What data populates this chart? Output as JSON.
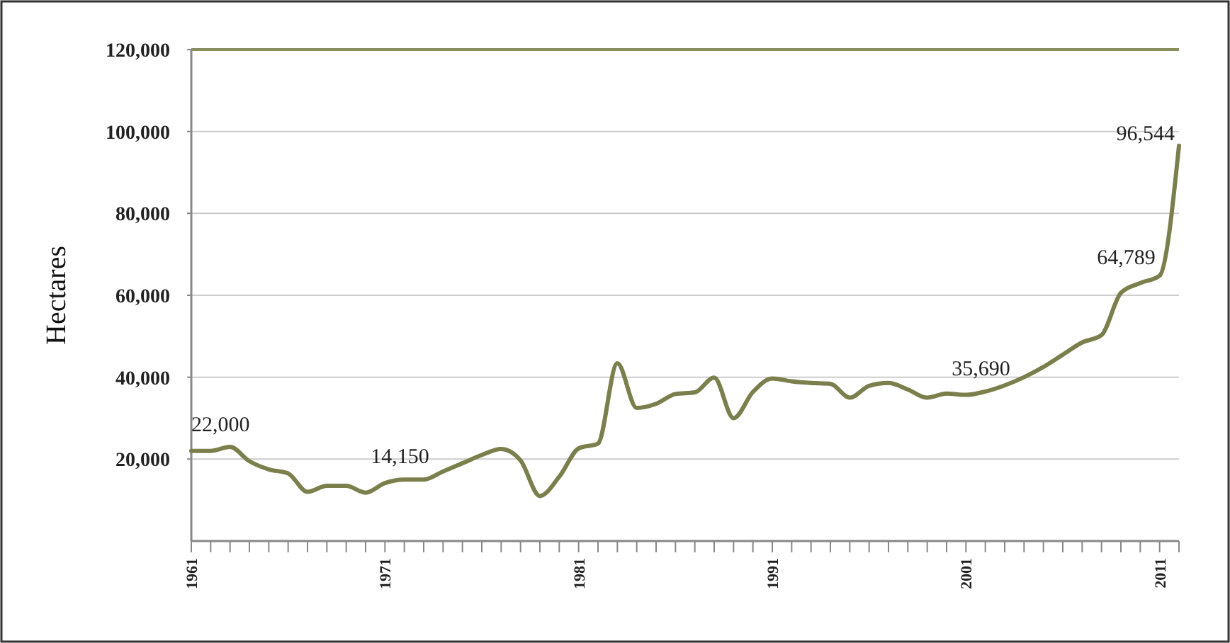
{
  "chart_data": {
    "type": "line",
    "ylabel": "Hectares",
    "x": [
      1961,
      1962,
      1963,
      1964,
      1965,
      1966,
      1967,
      1968,
      1969,
      1970,
      1971,
      1972,
      1973,
      1974,
      1975,
      1976,
      1977,
      1978,
      1979,
      1980,
      1981,
      1982,
      1983,
      1984,
      1985,
      1986,
      1987,
      1988,
      1989,
      1990,
      1991,
      1992,
      1993,
      1994,
      1995,
      1996,
      1997,
      1998,
      1999,
      2000,
      2001,
      2002,
      2003,
      2004,
      2005,
      2006,
      2007,
      2008,
      2009,
      2010,
      2011,
      2012
    ],
    "series": [
      {
        "color": "#7b7f4c",
        "values": [
          22000,
          22000,
          23000,
          19500,
          17500,
          16500,
          12000,
          13500,
          13500,
          11800,
          14150,
          15000,
          15000,
          17000,
          19000,
          21000,
          22500,
          19700,
          11000,
          15700,
          22600,
          23800,
          43400,
          32500,
          33500,
          35900,
          36300,
          39900,
          30000,
          36400,
          39700,
          39000,
          38600,
          38400,
          35000,
          37900,
          38600,
          37000,
          35000,
          36000,
          35690,
          36500,
          38000,
          40000,
          42500,
          45500,
          48500,
          50300,
          60600,
          63000,
          64789,
          96544
        ],
        "value_labels": [
          "22,000",
          null,
          null,
          null,
          null,
          null,
          null,
          null,
          null,
          null,
          "14,150",
          null,
          null,
          null,
          null,
          null,
          null,
          null,
          null,
          null,
          null,
          null,
          null,
          null,
          null,
          null,
          null,
          null,
          null,
          null,
          null,
          null,
          null,
          null,
          null,
          null,
          null,
          null,
          null,
          null,
          "35,690",
          null,
          null,
          null,
          null,
          null,
          null,
          null,
          null,
          null,
          "64,789",
          "96,544"
        ]
      }
    ],
    "xlim": [
      1961,
      2012
    ],
    "xticks": [
      1961,
      {
        "value": 1962,
        "label": null
      },
      {
        "value": 1963,
        "label": null
      },
      {
        "value": 1964,
        "label": null
      },
      {
        "value": 1965,
        "label": null
      },
      {
        "value": 1966,
        "label": null
      },
      {
        "value": 1967,
        "label": null
      },
      {
        "value": 1968,
        "label": null
      },
      {
        "value": 1969,
        "label": null
      },
      {
        "value": 1970,
        "label": null
      },
      1971,
      {
        "value": 1972,
        "label": null
      },
      {
        "value": 1973,
        "label": null
      },
      {
        "value": 1974,
        "label": null
      },
      {
        "value": 1975,
        "label": null
      },
      {
        "value": 1976,
        "label": null
      },
      {
        "value": 1977,
        "label": null
      },
      {
        "value": 1978,
        "label": null
      },
      {
        "value": 1979,
        "label": null
      },
      {
        "value": 1980,
        "label": null
      },
      1981,
      {
        "value": 1982,
        "label": null
      },
      {
        "value": 1983,
        "label": null
      },
      {
        "value": 1984,
        "label": null
      },
      {
        "value": 1985,
        "label": null
      },
      {
        "value": 1986,
        "label": null
      },
      {
        "value": 1987,
        "label": null
      },
      {
        "value": 1988,
        "label": null
      },
      {
        "value": 1989,
        "label": null
      },
      {
        "value": 1990,
        "label": null
      },
      1991,
      {
        "value": 1992,
        "label": null
      },
      {
        "value": 1993,
        "label": null
      },
      {
        "value": 1994,
        "label": null
      },
      {
        "value": 1995,
        "label": null
      },
      {
        "value": 1996,
        "label": null
      },
      {
        "value": 1997,
        "label": null
      },
      {
        "value": 1998,
        "label": null
      },
      {
        "value": 1999,
        "label": null
      },
      {
        "value": 2000,
        "label": null
      },
      2001,
      {
        "value": 2002,
        "label": null
      },
      {
        "value": 2003,
        "label": null
      },
      {
        "value": 2004,
        "label": null
      },
      {
        "value": 2005,
        "label": null
      },
      {
        "value": 2006,
        "label": null
      },
      {
        "value": 2007,
        "label": null
      },
      {
        "value": 2008,
        "label": null
      },
      {
        "value": 2009,
        "label": null
      },
      {
        "value": 2010,
        "label": null
      },
      2011,
      {
        "value": 2012,
        "label": null
      }
    ],
    "ylim": [
      0,
      120000
    ],
    "yticks": [
      {
        "value": 20000,
        "label": "20,000"
      },
      {
        "value": 40000,
        "label": "40,000"
      },
      {
        "value": 60000,
        "label": "60,000"
      },
      {
        "value": 80000,
        "label": "80,000"
      },
      {
        "value": 100000,
        "label": "100,000"
      },
      {
        "value": 120000,
        "label": "120,000"
      }
    ],
    "grid": "y",
    "marker": "none",
    "line_style": "solid"
  }
}
